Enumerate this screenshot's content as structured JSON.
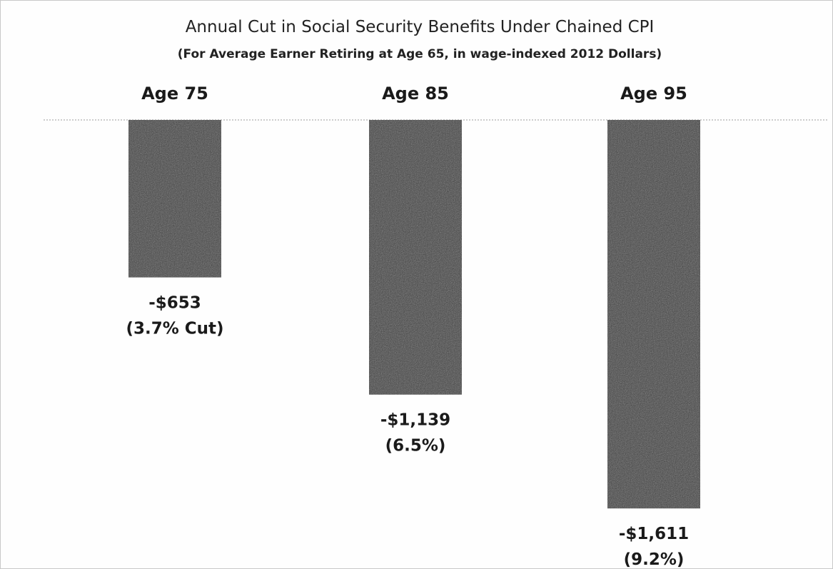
{
  "chart_data": {
    "type": "bar",
    "title": "Annual Cut in Social Security Benefits Under Chained CPI",
    "subtitle": "(For Average Earner Retiring at Age 65, in wage-indexed 2012 Dollars)",
    "categories": [
      "Age 75",
      "Age 85",
      "Age 95"
    ],
    "values": [
      -653,
      -1139,
      -1611
    ],
    "data_labels": [
      "-$653",
      "-$1,139",
      "-$1,611"
    ],
    "percent_labels": [
      "(3.7% Cut)",
      "(6.5%)",
      "(9.2%)"
    ],
    "ylim": [
      -1800,
      0
    ],
    "category_axis_position": "top",
    "legend": "none",
    "grid": false,
    "bar_color": "#3d3d3d"
  }
}
